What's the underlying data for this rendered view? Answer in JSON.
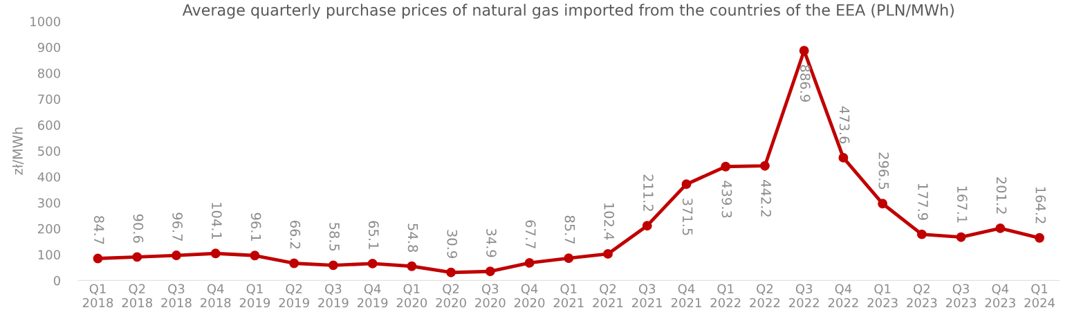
{
  "chart_data": {
    "type": "line",
    "title": "Average quarterly purchase prices of natural gas imported from the countries of the EEA (PLN/MWh)",
    "ylabel": "zł/MWh",
    "categories": [
      "Q1\n2018",
      "Q2\n2018",
      "Q3\n2018",
      "Q4\n2018",
      "Q1\n2019",
      "Q2\n2019",
      "Q3\n2019",
      "Q4\n2019",
      "Q1\n2020",
      "Q2\n2020",
      "Q3\n2020",
      "Q4\n2020",
      "Q1\n2021",
      "Q2\n2021",
      "Q3\n2021",
      "Q4\n2021",
      "Q1\n2022",
      "Q2\n2022",
      "Q3\n2022",
      "Q4\n2022",
      "Q1\n2023",
      "Q2\n2023",
      "Q3\n2023",
      "Q4\n2023",
      "Q1\n2024"
    ],
    "series": [
      {
        "color": "#c00000",
        "values": [
          84.7,
          90.6,
          96.7,
          104.1,
          96.1,
          66.2,
          58.5,
          65.1,
          54.8,
          30.9,
          34.9,
          67.7,
          85.7,
          102.4,
          211.2,
          371.5,
          439.3,
          442.2,
          886.9,
          473.6,
          296.5,
          177.9,
          167.1,
          201.2,
          164.2
        ]
      }
    ],
    "ylim": [
      0,
      1000
    ],
    "yticks": [
      0,
      100,
      200,
      300,
      400,
      500,
      600,
      700,
      800,
      900,
      1000
    ],
    "grid": false,
    "marker": "circle",
    "line_style": "solid",
    "data_labels": true
  }
}
